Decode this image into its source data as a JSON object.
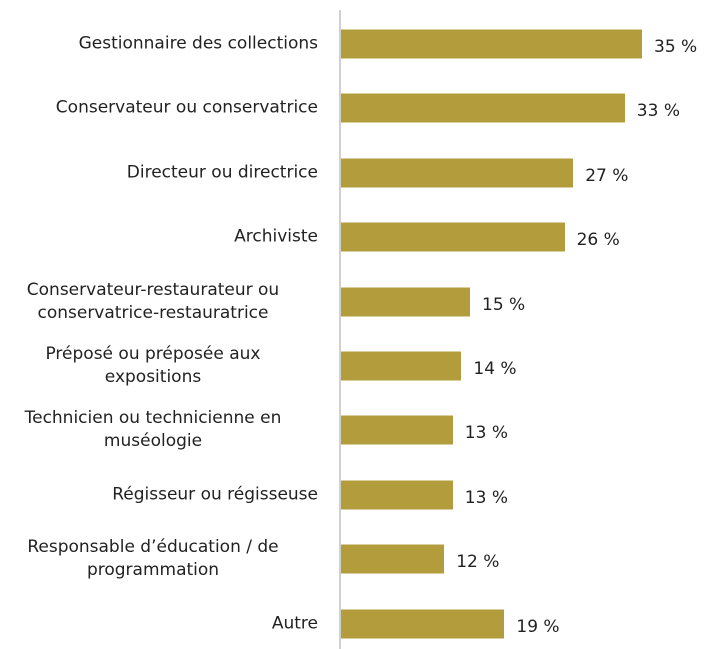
{
  "chart_data": {
    "type": "bar",
    "orientation": "horizontal",
    "color": "#b39c3c",
    "categories": [
      "Gestionnaire des collections",
      "Conservateur ou conservatrice",
      "Directeur ou directrice",
      "Archiviste",
      "Conservateur-restaurateur ou\nconservatrice-restauratrice",
      "Préposé ou préposée aux\nexpositions",
      "Technicien ou technicienne en\nmuséologie",
      "Régisseur ou régisseuse",
      "Responsable d’éducation / de\nprogrammation",
      "Autre"
    ],
    "values": [
      35,
      33,
      27,
      26,
      15,
      14,
      13,
      13,
      12,
      19
    ],
    "value_labels": [
      "35 %",
      "33 %",
      "27 %",
      "26 %",
      "15 %",
      "14 %",
      "13 %",
      "13 %",
      "12 %",
      "19 %"
    ]
  }
}
